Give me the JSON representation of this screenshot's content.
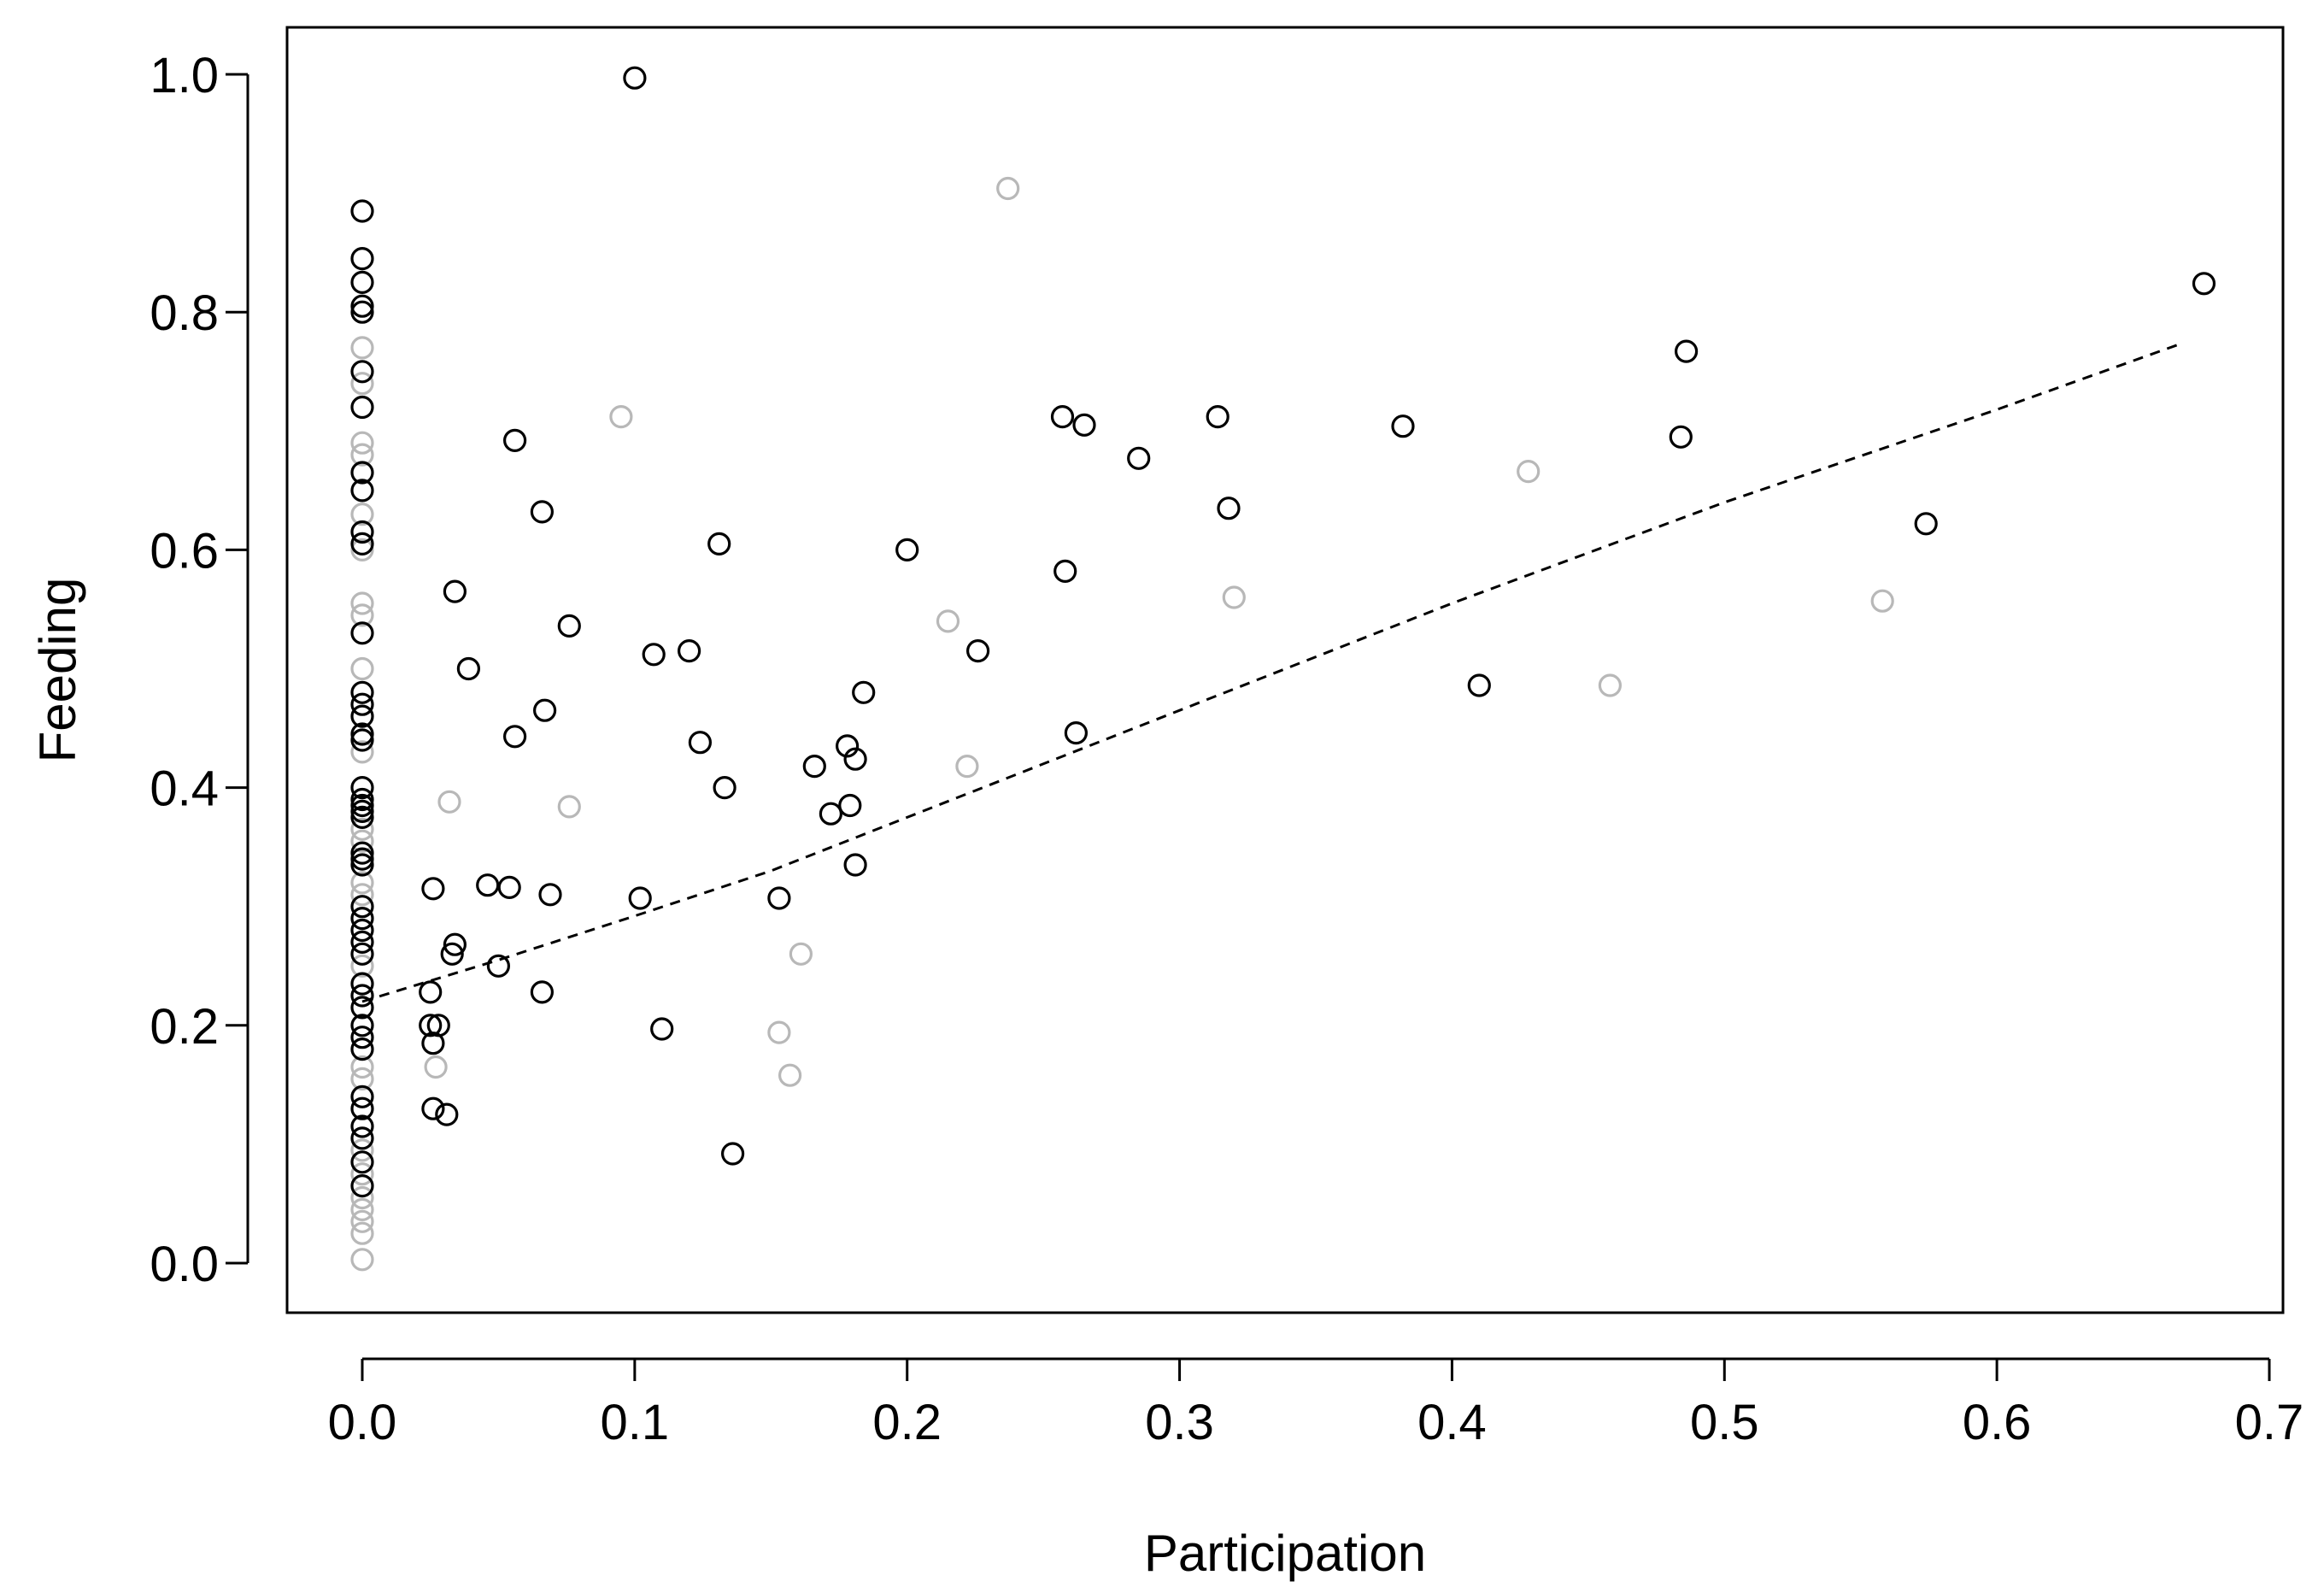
{
  "chart_data": {
    "type": "scatter",
    "title": "",
    "xlabel": "Participation",
    "ylabel": "Feeding",
    "xlim": [
      0.0,
      0.7
    ],
    "ylim": [
      0.0,
      1.0
    ],
    "x_ticks": [
      "0.0",
      "0.1",
      "0.2",
      "0.3",
      "0.4",
      "0.5",
      "0.6",
      "0.7"
    ],
    "y_ticks": [
      "0.0",
      "0.2",
      "0.4",
      "0.6",
      "0.8",
      "1.0"
    ],
    "x_tick_values": [
      0.0,
      0.1,
      0.2,
      0.3,
      0.4,
      0.5,
      0.6,
      0.7
    ],
    "y_tick_values": [
      0.0,
      0.2,
      0.4,
      0.6,
      0.8,
      1.0
    ],
    "grid": false,
    "legend": "none",
    "series": [
      {
        "color": "#000000",
        "points": [
          [
            0.0,
            0.885
          ],
          [
            0.0,
            0.845
          ],
          [
            0.0,
            0.825
          ],
          [
            0.0,
            0.805
          ],
          [
            0.0,
            0.8
          ],
          [
            0.0,
            0.75
          ],
          [
            0.0,
            0.72
          ],
          [
            0.0,
            0.665
          ],
          [
            0.0,
            0.65
          ],
          [
            0.0,
            0.615
          ],
          [
            0.0,
            0.605
          ],
          [
            0.0,
            0.53
          ],
          [
            0.0,
            0.48
          ],
          [
            0.0,
            0.47
          ],
          [
            0.0,
            0.46
          ],
          [
            0.0,
            0.445
          ],
          [
            0.0,
            0.44
          ],
          [
            0.0,
            0.4
          ],
          [
            0.0,
            0.39
          ],
          [
            0.0,
            0.385
          ],
          [
            0.0,
            0.38
          ],
          [
            0.0,
            0.375
          ],
          [
            0.0,
            0.345
          ],
          [
            0.0,
            0.34
          ],
          [
            0.0,
            0.335
          ],
          [
            0.0,
            0.3
          ],
          [
            0.0,
            0.29
          ],
          [
            0.0,
            0.28
          ],
          [
            0.0,
            0.27
          ],
          [
            0.0,
            0.26
          ],
          [
            0.0,
            0.235
          ],
          [
            0.0,
            0.225
          ],
          [
            0.0,
            0.215
          ],
          [
            0.0,
            0.2
          ],
          [
            0.0,
            0.19
          ],
          [
            0.0,
            0.18
          ],
          [
            0.0,
            0.14
          ],
          [
            0.0,
            0.13
          ],
          [
            0.0,
            0.115
          ],
          [
            0.0,
            0.105
          ],
          [
            0.0,
            0.085
          ],
          [
            0.0,
            0.065
          ],
          [
            0.025,
            0.228
          ],
          [
            0.026,
            0.315
          ],
          [
            0.025,
            0.2
          ],
          [
            0.026,
            0.185
          ],
          [
            0.028,
            0.2
          ],
          [
            0.026,
            0.13
          ],
          [
            0.031,
            0.125
          ],
          [
            0.033,
            0.26
          ],
          [
            0.034,
            0.565
          ],
          [
            0.034,
            0.268
          ],
          [
            0.039,
            0.5
          ],
          [
            0.046,
            0.318
          ],
          [
            0.05,
            0.25
          ],
          [
            0.054,
            0.316
          ],
          [
            0.056,
            0.692
          ],
          [
            0.056,
            0.443
          ],
          [
            0.066,
            0.228
          ],
          [
            0.066,
            0.632
          ],
          [
            0.067,
            0.465
          ],
          [
            0.069,
            0.31
          ],
          [
            0.076,
            0.536
          ],
          [
            0.1,
            0.997
          ],
          [
            0.102,
            0.307
          ],
          [
            0.107,
            0.512
          ],
          [
            0.11,
            0.197
          ],
          [
            0.12,
            0.515
          ],
          [
            0.124,
            0.438
          ],
          [
            0.131,
            0.605
          ],
          [
            0.133,
            0.4
          ],
          [
            0.136,
            0.092
          ],
          [
            0.153,
            0.307
          ],
          [
            0.166,
            0.418
          ],
          [
            0.172,
            0.378
          ],
          [
            0.178,
            0.435
          ],
          [
            0.179,
            0.385
          ],
          [
            0.181,
            0.424
          ],
          [
            0.181,
            0.335
          ],
          [
            0.184,
            0.48
          ],
          [
            0.2,
            0.6
          ],
          [
            0.226,
            0.515
          ],
          [
            0.257,
            0.712
          ],
          [
            0.258,
            0.582
          ],
          [
            0.262,
            0.446
          ],
          [
            0.265,
            0.705
          ],
          [
            0.285,
            0.677
          ],
          [
            0.314,
            0.712
          ],
          [
            0.318,
            0.635
          ],
          [
            0.382,
            0.704
          ],
          [
            0.41,
            0.486
          ],
          [
            0.484,
            0.695
          ],
          [
            0.486,
            0.767
          ],
          [
            0.574,
            0.622
          ],
          [
            0.676,
            0.824
          ]
        ]
      },
      {
        "color": "#b8b8b8",
        "points": [
          [
            0.0,
            0.77
          ],
          [
            0.0,
            0.74
          ],
          [
            0.0,
            0.69
          ],
          [
            0.0,
            0.68
          ],
          [
            0.0,
            0.63
          ],
          [
            0.0,
            0.6
          ],
          [
            0.0,
            0.555
          ],
          [
            0.0,
            0.545
          ],
          [
            0.0,
            0.5
          ],
          [
            0.0,
            0.43
          ],
          [
            0.0,
            0.365
          ],
          [
            0.0,
            0.355
          ],
          [
            0.0,
            0.32
          ],
          [
            0.0,
            0.31
          ],
          [
            0.0,
            0.25
          ],
          [
            0.0,
            0.165
          ],
          [
            0.0,
            0.155
          ],
          [
            0.0,
            0.095
          ],
          [
            0.0,
            0.075
          ],
          [
            0.0,
            0.055
          ],
          [
            0.0,
            0.045
          ],
          [
            0.0,
            0.035
          ],
          [
            0.0,
            0.025
          ],
          [
            0.0,
            0.003
          ],
          [
            0.027,
            0.165
          ],
          [
            0.032,
            0.388
          ],
          [
            0.095,
            0.712
          ],
          [
            0.076,
            0.384
          ],
          [
            0.153,
            0.194
          ],
          [
            0.157,
            0.158
          ],
          [
            0.161,
            0.26
          ],
          [
            0.215,
            0.54
          ],
          [
            0.222,
            0.418
          ],
          [
            0.237,
            0.904
          ],
          [
            0.32,
            0.56
          ],
          [
            0.428,
            0.666
          ],
          [
            0.458,
            0.486
          ],
          [
            0.558,
            0.557
          ]
        ]
      }
    ],
    "trend_line": {
      "style": "dashed",
      "color": "#000000",
      "x": [
        0.0,
        0.05,
        0.1,
        0.15,
        0.2,
        0.3,
        0.4,
        0.5,
        0.6,
        0.667
      ],
      "y": [
        0.22,
        0.255,
        0.292,
        0.33,
        0.375,
        0.465,
        0.555,
        0.64,
        0.718,
        0.773
      ]
    }
  }
}
